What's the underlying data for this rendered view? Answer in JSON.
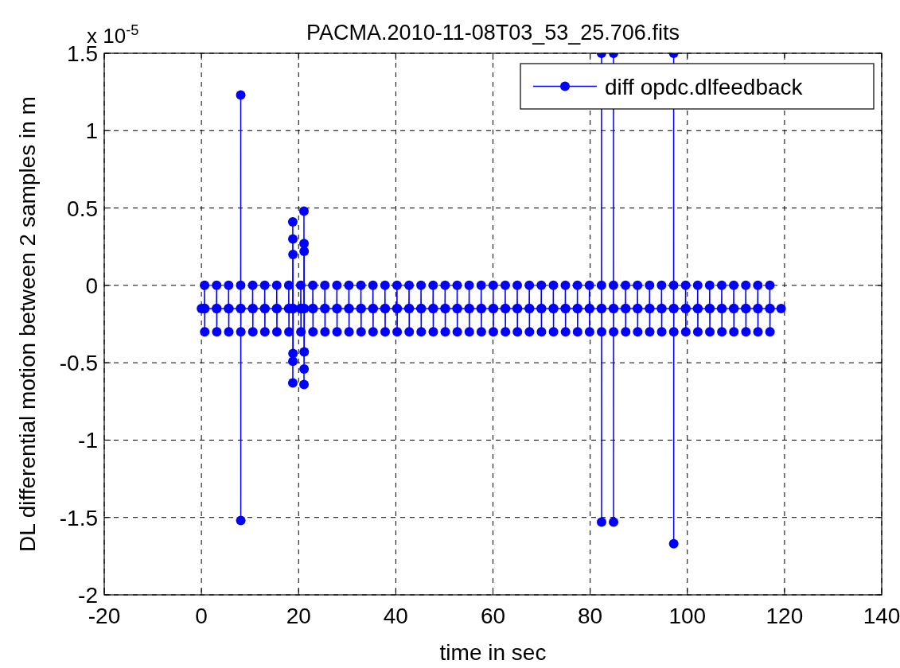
{
  "chart_data": {
    "type": "line",
    "title": "PACMA.2010-11-08T03_53_25.706.fits",
    "xlabel": "time in sec",
    "ylabel": "DL differential motion between 2 samples in m",
    "annotations": [
      "x 10$^{-5}$"
    ],
    "xlim": [
      -20,
      140
    ],
    "xticks": [
      -20,
      0,
      20,
      40,
      60,
      80,
      100,
      120,
      140
    ],
    "ylim": [
      -2,
      1.5
    ],
    "yticks": [
      -2,
      -1.5,
      -1,
      -0.5,
      0,
      0.5,
      1,
      1.5
    ],
    "grid": true,
    "legend": "top right",
    "marker": "circle",
    "line_style": "solid",
    "series": [
      {
        "name": "diff opdc.dlfeedback",
        "color": "#0000ff",
        "x": [
          0,
          0.62,
          0.65,
          0.68,
          0.71,
          3.1,
          3.13,
          3.16,
          3.19,
          5.57,
          5.6,
          5.63,
          5.66,
          8.05,
          8.08,
          8.09,
          8.1,
          8.11,
          8.14,
          10.52,
          10.55,
          10.58,
          10.61,
          13.0,
          13.03,
          13.06,
          13.09,
          15.47,
          15.5,
          15.53,
          15.56,
          17.95,
          17.98,
          18.01,
          18.04,
          18.78,
          18.8,
          18.81,
          18.82,
          18.83,
          18.84,
          18.85,
          18.88,
          20.42,
          20.45,
          20.48,
          20.51,
          21.08,
          21.1,
          21.11,
          21.12,
          21.13,
          21.14,
          21.15,
          21.18,
          22.9,
          22.93,
          22.96,
          22.99,
          25.37,
          25.4,
          25.43,
          25.46,
          27.85,
          27.88,
          27.91,
          27.94,
          30.32,
          30.35,
          30.38,
          30.41,
          32.8,
          32.83,
          32.86,
          32.89,
          35.27,
          35.3,
          35.33,
          35.36,
          37.75,
          37.78,
          37.81,
          37.84,
          40.22,
          40.25,
          40.28,
          40.31,
          42.7,
          42.73,
          42.76,
          42.79,
          45.17,
          45.2,
          45.23,
          45.26,
          47.65,
          47.68,
          47.71,
          47.74,
          50.12,
          50.15,
          50.18,
          50.21,
          52.6,
          52.63,
          52.66,
          52.69,
          55.07,
          55.1,
          55.13,
          55.16,
          57.55,
          57.58,
          57.61,
          57.64,
          60.02,
          60.05,
          60.08,
          60.11,
          62.5,
          62.53,
          62.56,
          62.59,
          64.97,
          65.0,
          65.03,
          65.06,
          67.45,
          67.48,
          67.51,
          67.54,
          69.92,
          69.95,
          69.98,
          70.01,
          72.4,
          72.43,
          72.46,
          72.49,
          74.87,
          74.9,
          74.93,
          74.96,
          77.35,
          77.38,
          77.41,
          77.44,
          79.82,
          79.85,
          79.88,
          79.91,
          82.3,
          82.33,
          82.34,
          82.35,
          82.36,
          82.39,
          84.77,
          84.8,
          84.81,
          84.82,
          84.83,
          84.86,
          87.25,
          87.28,
          87.31,
          87.34,
          89.72,
          89.75,
          89.78,
          89.81,
          92.2,
          92.23,
          92.26,
          92.29,
          94.67,
          94.7,
          94.73,
          94.76,
          97.15,
          97.18,
          97.19,
          97.2,
          97.21,
          97.24,
          99.62,
          99.65,
          99.68,
          99.71,
          102.1,
          102.13,
          102.16,
          102.19,
          104.57,
          104.6,
          104.63,
          104.66,
          107.05,
          107.08,
          107.11,
          107.14,
          109.52,
          109.55,
          109.58,
          109.61,
          112.0,
          112.03,
          112.06,
          112.09,
          114.47,
          114.5,
          114.53,
          114.56,
          116.95,
          116.98,
          117.01,
          117.04,
          119.3
        ],
        "values": [
          -0.15,
          -0.15,
          0,
          -0.3,
          -0.15,
          -0.15,
          0,
          -0.3,
          -0.15,
          -0.15,
          0,
          -0.3,
          -0.15,
          -0.15,
          0,
          1.23,
          -1.52,
          -0.3,
          -0.15,
          -0.15,
          0,
          -0.3,
          -0.15,
          -0.15,
          0,
          -0.3,
          -0.15,
          -0.15,
          0,
          -0.3,
          -0.15,
          -0.15,
          0,
          -0.3,
          -0.15,
          -0.15,
          0.41,
          -0.63,
          0.3,
          -0.49,
          0.2,
          -0.44,
          -0.15,
          -0.15,
          0,
          -0.3,
          -0.15,
          -0.15,
          0.48,
          -0.64,
          0.27,
          -0.54,
          0.22,
          -0.43,
          -0.15,
          -0.15,
          0,
          -0.3,
          -0.15,
          -0.15,
          0,
          -0.3,
          -0.15,
          -0.15,
          0,
          -0.3,
          -0.15,
          -0.15,
          0,
          -0.3,
          -0.15,
          -0.15,
          0,
          -0.3,
          -0.15,
          -0.15,
          0,
          -0.3,
          -0.15,
          -0.15,
          0,
          -0.3,
          -0.15,
          -0.15,
          0,
          -0.3,
          -0.15,
          -0.15,
          0,
          -0.3,
          -0.15,
          -0.15,
          0,
          -0.3,
          -0.15,
          -0.15,
          0,
          -0.3,
          -0.15,
          -0.15,
          0,
          -0.3,
          -0.15,
          -0.15,
          0,
          -0.3,
          -0.15,
          -0.15,
          0,
          -0.3,
          -0.15,
          -0.15,
          0,
          -0.3,
          -0.15,
          -0.15,
          0,
          -0.3,
          -0.15,
          -0.15,
          0,
          -0.3,
          -0.15,
          -0.15,
          0,
          -0.3,
          -0.15,
          -0.15,
          0,
          -0.3,
          -0.15,
          -0.15,
          0,
          -0.3,
          -0.15,
          -0.15,
          0,
          -0.3,
          -0.15,
          -0.15,
          0,
          -0.3,
          -0.15,
          -0.15,
          0,
          -0.3,
          -0.15,
          -0.15,
          0,
          -0.3,
          -0.15,
          -0.15,
          0,
          1.5,
          -1.53,
          -0.3,
          -0.15,
          -0.15,
          0,
          1.5,
          -1.53,
          -0.3,
          -0.15,
          -0.15,
          0,
          -0.3,
          -0.15,
          -0.15,
          0,
          -0.3,
          -0.15,
          -0.15,
          0,
          -0.3,
          -0.15,
          -0.15,
          0,
          -0.3,
          -0.15,
          -0.15,
          0,
          1.5,
          -1.67,
          -0.3,
          -0.15,
          -0.15,
          0,
          -0.3,
          -0.15,
          -0.15,
          0,
          -0.3,
          -0.15,
          -0.15,
          0,
          -0.3,
          -0.15,
          -0.15,
          0,
          -0.3,
          -0.15,
          -0.15,
          0,
          -0.3,
          -0.15,
          -0.15,
          0,
          -0.3,
          -0.15,
          -0.15,
          0,
          -0.3,
          -0.15,
          -0.15,
          0,
          -0.3,
          -0.15,
          -0.15
        ]
      }
    ]
  }
}
